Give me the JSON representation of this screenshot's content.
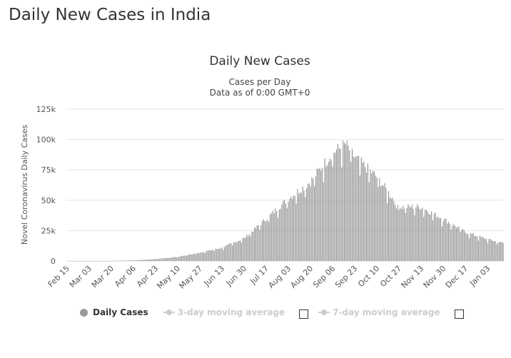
{
  "page": {
    "title": "Daily New Cases in India"
  },
  "legend": {
    "items": [
      {
        "label": "Daily Cases",
        "color": "#9a9a9a",
        "active": true
      },
      {
        "label": "3-day moving average",
        "color": "#cccccc",
        "active": false
      },
      {
        "label": "7-day moving average",
        "color": "#cccccc",
        "active": false
      }
    ]
  },
  "chart_data": {
    "type": "bar",
    "title": "Daily New Cases",
    "subtitle": [
      "Cases per Day",
      "Data as of 0:00 GMT+0"
    ],
    "ylabel": "Novel Coronavirus Daily Cases",
    "xlabel": "",
    "ylim": [
      0,
      125000
    ],
    "yticks": [
      0,
      25000,
      50000,
      75000,
      100000,
      125000
    ],
    "ytick_labels": [
      "0",
      "25k",
      "50k",
      "75k",
      "100k",
      "125k"
    ],
    "xtick_labels": [
      "Feb 15",
      "Mar 03",
      "Mar 20",
      "Apr 06",
      "Apr 23",
      "May 10",
      "May 27",
      "Jun 13",
      "Jun 30",
      "Jul 17",
      "Aug 03",
      "Aug 20",
      "Sep 06",
      "Sep 23",
      "Oct 10",
      "Oct 27",
      "Nov 13",
      "Nov 30",
      "Dec 17",
      "Jan 03"
    ],
    "grid": true,
    "bar_color": "#8e8e8e",
    "series": [
      {
        "name": "Daily Cases",
        "start_date": "Feb 15",
        "approx_knots": [
          {
            "x": "Feb 15",
            "y": 0
          },
          {
            "x": "Mar 20",
            "y": 20
          },
          {
            "x": "Apr 06",
            "y": 600
          },
          {
            "x": "Apr 23",
            "y": 1600
          },
          {
            "x": "May 10",
            "y": 3500
          },
          {
            "x": "May 27",
            "y": 7000
          },
          {
            "x": "Jun 13",
            "y": 11000
          },
          {
            "x": "Jun 30",
            "y": 19000
          },
          {
            "x": "Jul 17",
            "y": 35000
          },
          {
            "x": "Aug 03",
            "y": 52000
          },
          {
            "x": "Aug 20",
            "y": 66000
          },
          {
            "x": "Sep 06",
            "y": 90000
          },
          {
            "x": "Sep 16",
            "y": 97000
          },
          {
            "x": "Sep 23",
            "y": 86000
          },
          {
            "x": "Oct 10",
            "y": 70000
          },
          {
            "x": "Oct 27",
            "y": 45000
          },
          {
            "x": "Nov 13",
            "y": 45000
          },
          {
            "x": "Nov 30",
            "y": 35000
          },
          {
            "x": "Dec 17",
            "y": 24000
          },
          {
            "x": "Jan 03",
            "y": 18000
          },
          {
            "x": "Jan 15",
            "y": 15000
          }
        ]
      }
    ]
  }
}
